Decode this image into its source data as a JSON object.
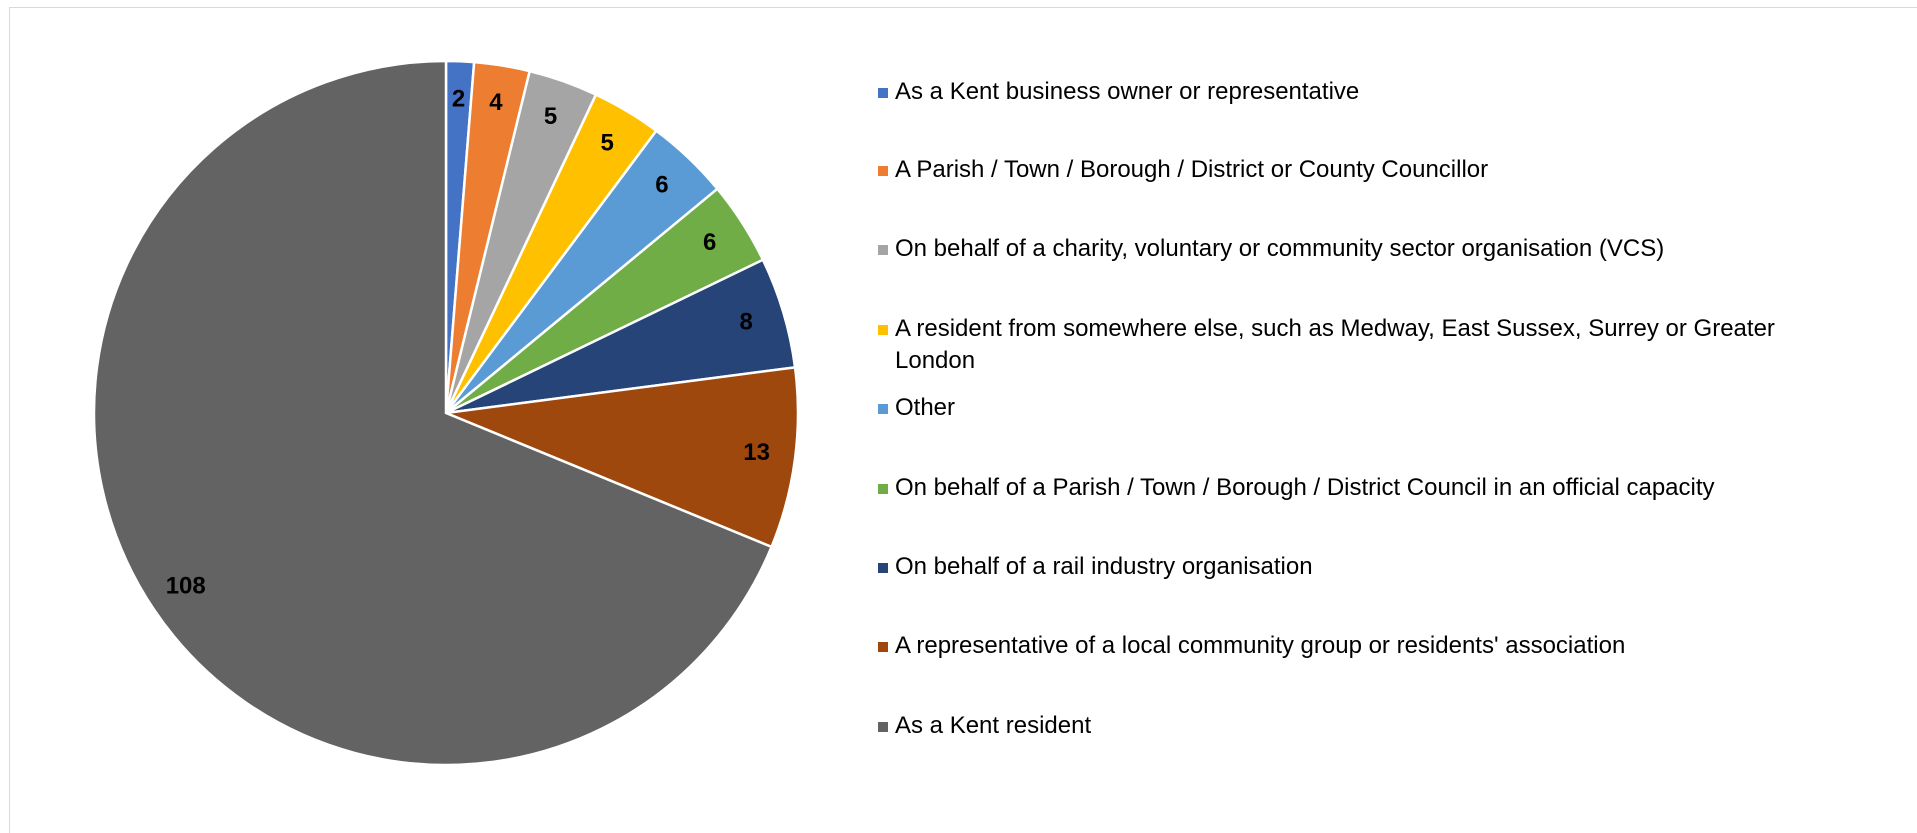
{
  "chart_data": {
    "type": "pie",
    "categories": [
      "As a Kent business owner or representative",
      "A Parish / Town / Borough / District or County Councillor",
      "On behalf of a charity, voluntary or community sector organisation (VCS)",
      "A resident from somewhere else, such as Medway, East Sussex, Surrey or Greater London",
      "Other",
      "On behalf of a Parish / Town / Borough / District Council in an official capacity",
      "On behalf of a rail industry organisation",
      "A representative of a local community group or residents' association",
      "As a Kent resident"
    ],
    "values": [
      2,
      4,
      5,
      5,
      6,
      6,
      8,
      13,
      108
    ],
    "colors": [
      "#4472c4",
      "#ed7d31",
      "#a5a5a5",
      "#ffc000",
      "#5b9bd5",
      "#70ad47",
      "#264478",
      "#9e480e",
      "#636363"
    ],
    "legend": "right"
  }
}
